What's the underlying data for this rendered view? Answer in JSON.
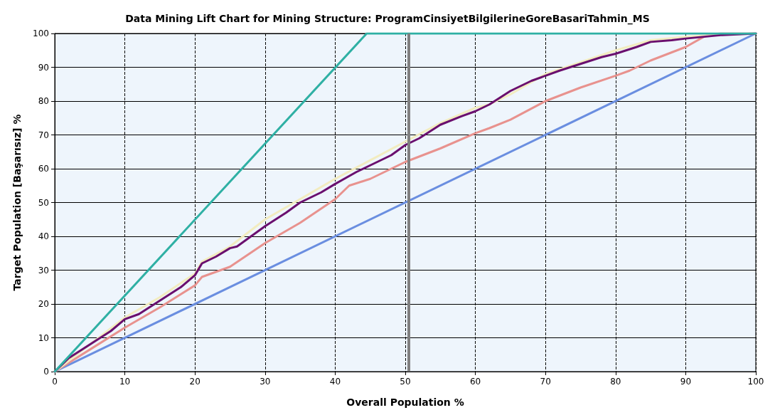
{
  "chart_data": {
    "type": "line",
    "title": "Data Mining Lift Chart for Mining Structure: ProgramCinsiyetBilgilerineGoreBasariTahmin_MS",
    "xlabel": "Overall Population %",
    "ylabel": "Target Population [Başarısız] %",
    "xlim": [
      0,
      100
    ],
    "ylim": [
      0,
      100
    ],
    "xticks": [
      0,
      10,
      20,
      30,
      40,
      50,
      60,
      70,
      80,
      90,
      100
    ],
    "yticks": [
      0,
      10,
      20,
      30,
      40,
      50,
      60,
      70,
      80,
      90,
      100
    ],
    "grid": true,
    "marker": "none",
    "line_style": "solid",
    "ref_lines": [
      {
        "axis": "x",
        "value": 50.5,
        "color": "#808080"
      }
    ],
    "series": [
      {
        "color": "#6a8ee0",
        "x": [
          0,
          100
        ],
        "values": [
          0,
          100
        ]
      },
      {
        "color": "#e8928e",
        "x": [
          0,
          5,
          10,
          15,
          20,
          21,
          25,
          30,
          35,
          40,
          42,
          45,
          50,
          55,
          60,
          62,
          65,
          70,
          75,
          80,
          82,
          85,
          90,
          93,
          95,
          100
        ],
        "values": [
          0,
          6.5,
          13,
          19,
          25.5,
          28,
          31,
          38,
          44,
          51,
          55,
          57,
          62,
          66,
          70.5,
          72,
          74.5,
          80,
          84,
          87.5,
          89,
          92,
          96,
          99.5,
          100,
          100
        ]
      },
      {
        "color": "#f2ecc0",
        "x": [
          0,
          5,
          10,
          15,
          20,
          21,
          25,
          30,
          35,
          40,
          45,
          50,
          55,
          60,
          62,
          65,
          70,
          75,
          80,
          85,
          90,
          95,
          100
        ],
        "values": [
          0,
          8,
          16,
          22,
          29,
          32.5,
          37,
          45,
          51,
          57,
          62.5,
          68,
          73.5,
          78,
          79,
          82,
          88,
          91.5,
          95,
          98,
          99,
          99.7,
          100
        ]
      },
      {
        "color": "#6a0f6e",
        "x": [
          0,
          2,
          5,
          8,
          10,
          12,
          15,
          18,
          20,
          21,
          23,
          25,
          26,
          28,
          30,
          33,
          35,
          38,
          40,
          43,
          45,
          48,
          50,
          52,
          55,
          58,
          60,
          62,
          65,
          68,
          70,
          72,
          75,
          78,
          80,
          83,
          85,
          88,
          90,
          95,
          100
        ],
        "values": [
          0,
          4,
          8,
          12,
          15.5,
          17,
          21,
          25,
          28.5,
          32,
          34,
          36.5,
          37,
          40,
          43,
          47,
          50,
          53,
          55.5,
          59,
          61,
          64,
          67,
          69,
          73,
          75.5,
          77,
          79,
          83,
          86,
          87.5,
          89,
          91,
          93,
          94,
          96,
          97.5,
          98,
          98.5,
          99.5,
          100
        ]
      },
      {
        "color": "#2fb0a4",
        "x": [
          0,
          44.5,
          100
        ],
        "values": [
          0,
          100,
          100
        ]
      }
    ]
  }
}
